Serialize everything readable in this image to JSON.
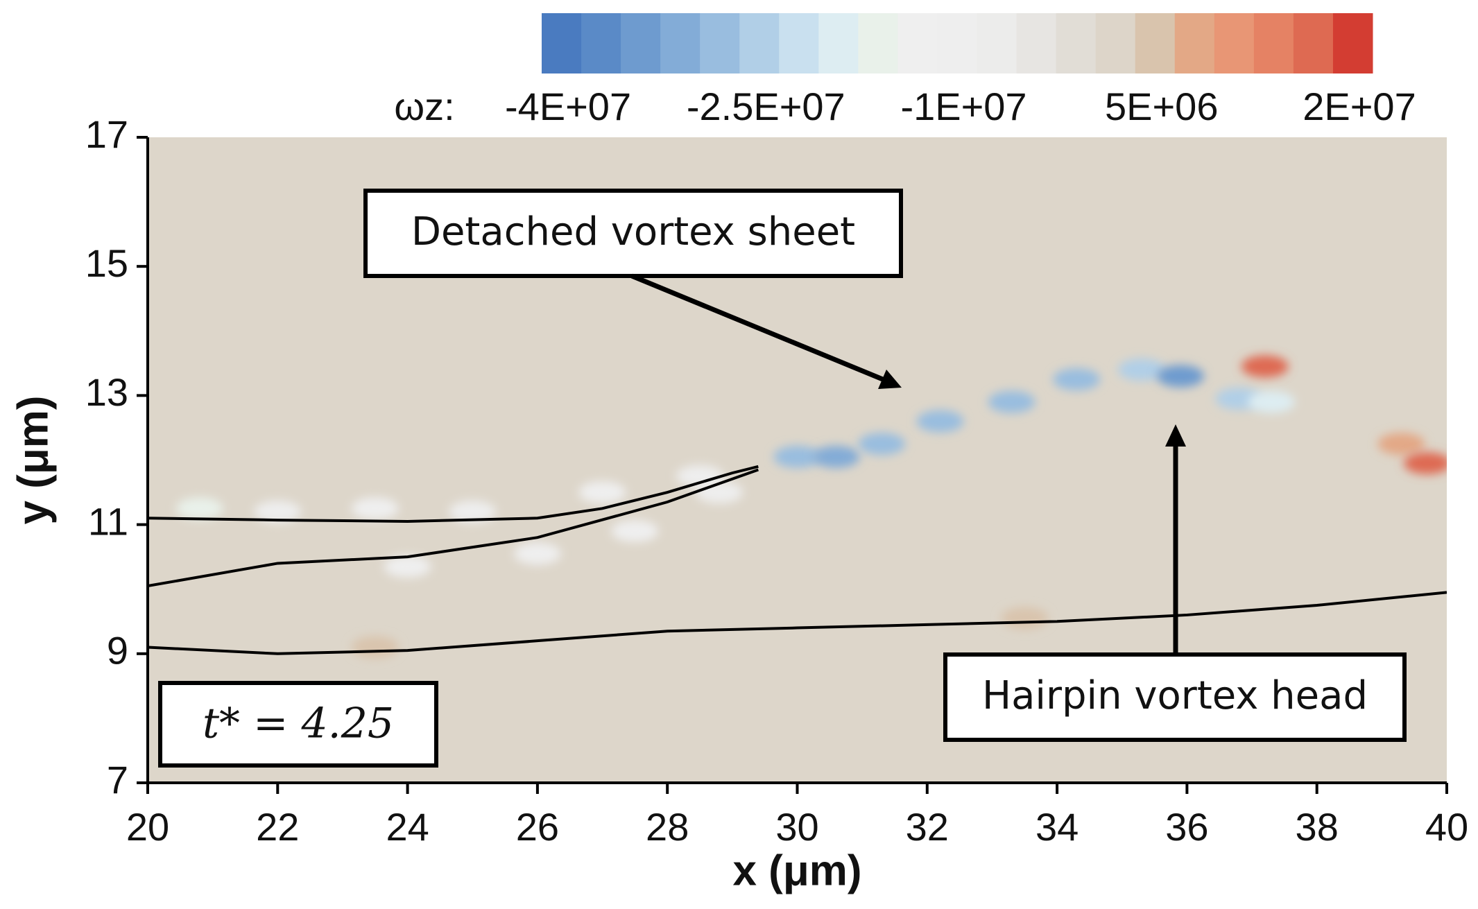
{
  "chart_data": {
    "type": "contour",
    "x_label": "x (μm)",
    "y_label": "y (μm)",
    "xlim": [
      20,
      40
    ],
    "xticks": [
      20,
      22,
      24,
      26,
      28,
      30,
      32,
      34,
      36,
      38,
      40
    ],
    "ylim": [
      7,
      17
    ],
    "yticks": [
      7,
      9,
      11,
      13,
      15,
      17
    ],
    "colorbar_label": "ωz:",
    "clim": [
      -42000000,
      21000000
    ],
    "cticks": [
      {
        "value": -40000000,
        "label": "-4E+07"
      },
      {
        "value": -25000000,
        "label": "-2.5E+07"
      },
      {
        "value": -10000000,
        "label": "-1E+07"
      },
      {
        "value": 5000000,
        "label": "5E+06"
      },
      {
        "value": 20000000,
        "label": "2E+07"
      }
    ],
    "colormap": [
      "#4a7bc0",
      "#5a8ac7",
      "#6e9bcf",
      "#83acd7",
      "#99bddf",
      "#b1cfe7",
      "#c9e0ef",
      "#ddedf2",
      "#e9f1ea",
      "#efefef",
      "#eeeeee",
      "#ececeb",
      "#e7e5e2",
      "#e1ddd6",
      "#ddd5c9",
      "#d9c4ad",
      "#e3a886",
      "#e89675",
      "#e58264",
      "#de6a52",
      "#d33d32"
    ],
    "background": "#ddd6ca",
    "field": {
      "x": [
        20.8,
        22,
        23.5,
        25,
        27,
        28.5,
        24,
        26,
        27.5,
        28.8,
        30,
        30.6,
        31.3,
        32.2,
        33.3,
        34.3,
        35.3,
        35.9,
        36.8,
        37.3,
        37.2,
        39.3,
        39.7,
        23.5,
        33.5
      ],
      "y": [
        11.25,
        11.2,
        11.25,
        11.2,
        11.5,
        11.75,
        10.35,
        10.55,
        10.9,
        11.5,
        12.05,
        12.05,
        12.25,
        12.6,
        12.9,
        13.25,
        13.4,
        13.3,
        12.95,
        12.9,
        13.45,
        12.25,
        11.95,
        9.1,
        9.55
      ],
      "values": [
        -16000000,
        -12000000,
        -13000000,
        -12000000,
        -13000000,
        -12000000,
        -13000000,
        -13000000,
        -13000000,
        -12000000,
        -30000000,
        -33000000,
        -30000000,
        -30000000,
        -28000000,
        -28000000,
        -26000000,
        -36000000,
        -25000000,
        -20000000,
        15000000,
        7000000,
        16000000,
        5000000,
        4000000
      ]
    },
    "contours": [
      {
        "x": [
          20,
          22,
          24,
          26,
          27,
          28,
          29,
          29.4
        ],
        "y": [
          11.1,
          11.07,
          11.05,
          11.1,
          11.25,
          11.5,
          11.8,
          11.9
        ]
      },
      {
        "x": [
          20,
          22,
          24,
          26,
          28,
          29.4
        ],
        "y": [
          10.05,
          10.4,
          10.5,
          10.8,
          11.35,
          11.85
        ]
      },
      {
        "x": [
          20,
          22,
          24,
          26,
          28,
          30,
          32,
          34,
          36,
          38,
          40
        ],
        "y": [
          9.1,
          9.0,
          9.05,
          9.2,
          9.35,
          9.4,
          9.45,
          9.5,
          9.6,
          9.75,
          9.95
        ]
      }
    ],
    "annotations": [
      "Detached vortex sheet",
      "Hairpin vortex head",
      "t* = 4.25"
    ]
  }
}
